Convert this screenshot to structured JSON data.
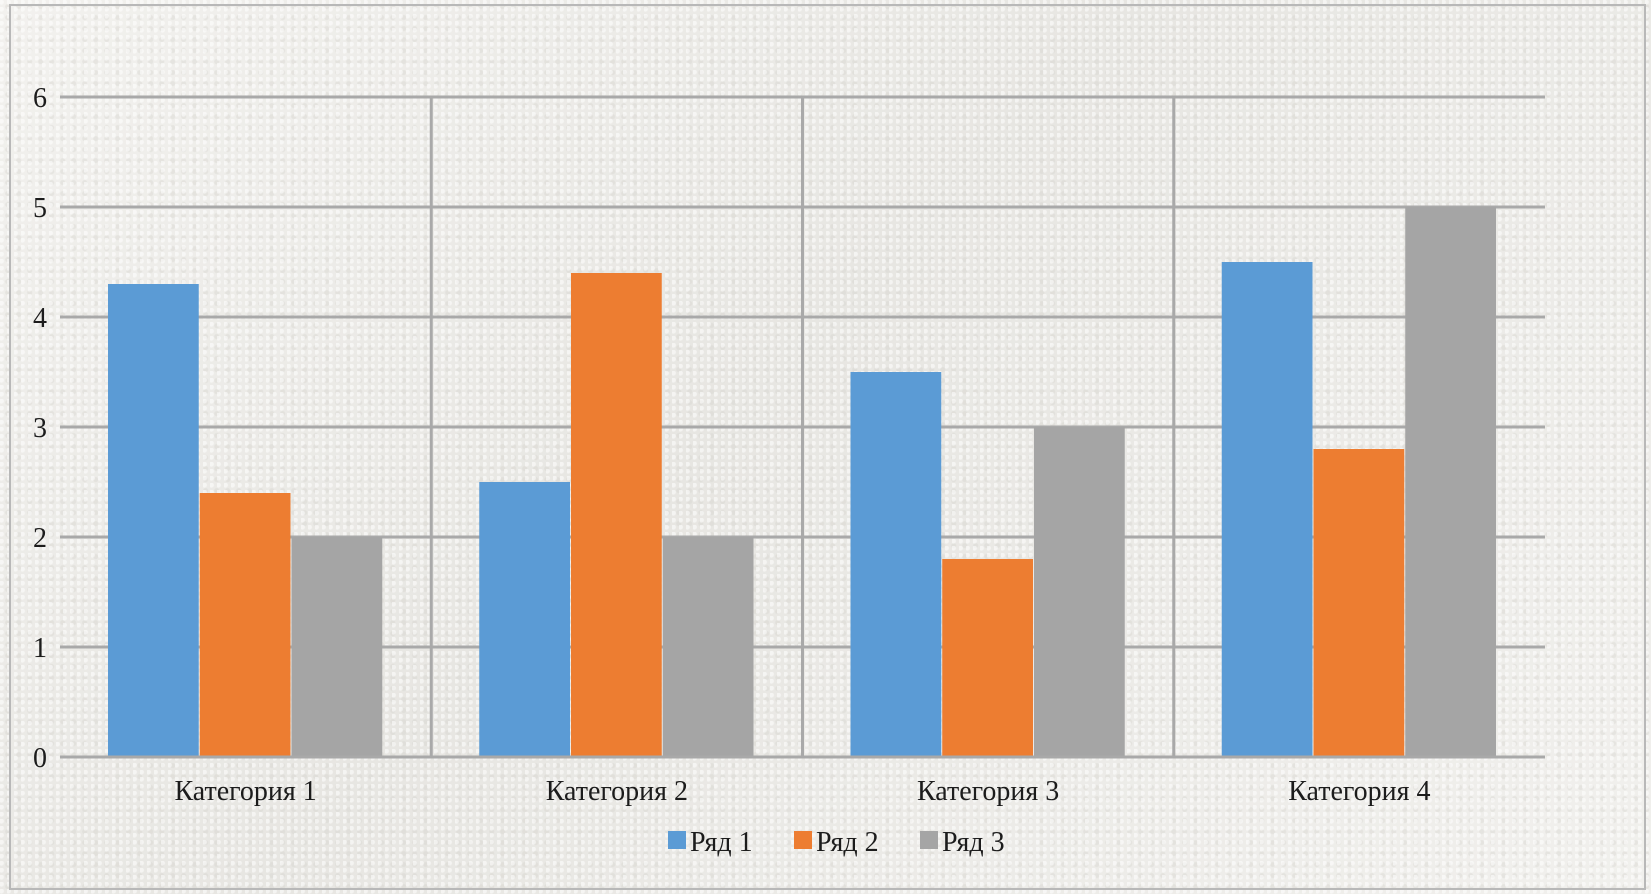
{
  "chart_data": {
    "type": "bar",
    "categories": [
      "Категория 1",
      "Категория 2",
      "Категория 3",
      "Категория 4"
    ],
    "series": [
      {
        "name": "Ряд 1",
        "values": [
          4.3,
          2.5,
          3.5,
          4.5
        ],
        "color": "#5b9bd5"
      },
      {
        "name": "Ряд 2",
        "values": [
          2.4,
          4.4,
          1.8,
          2.8
        ],
        "color": "#ed7d31"
      },
      {
        "name": "Ряд 3",
        "values": [
          2.0,
          2.0,
          3.0,
          5.0
        ],
        "color": "#a5a5a5"
      }
    ],
    "ylim": [
      0,
      6
    ],
    "yticks": [
      "0",
      "1",
      "2",
      "3",
      "4",
      "5",
      "6"
    ],
    "grid": true,
    "legend_position": "bottom"
  }
}
